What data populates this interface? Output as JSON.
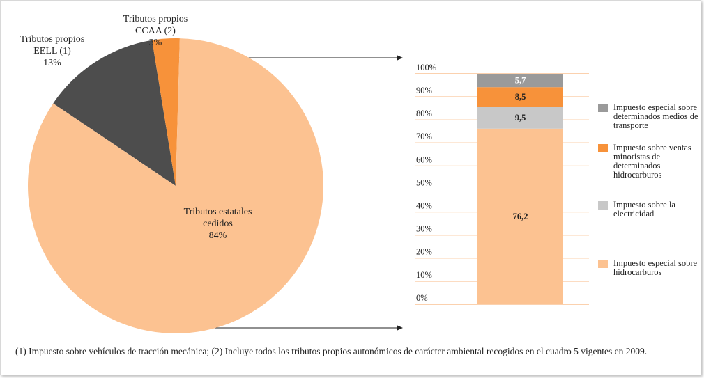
{
  "chart_data": [
    {
      "type": "pie",
      "categories": [
        "Tributos propios EELL (1)",
        "Tributos propios CCAA (2)",
        "Tributos estatales cedidos"
      ],
      "values": [
        13,
        3,
        84
      ],
      "value_labels": [
        "13%",
        "3%",
        "84%"
      ],
      "colors": [
        "#4d4d4d",
        "#f7923a",
        "#fcc291"
      ]
    },
    {
      "type": "stacked-bar",
      "categories": [
        null
      ],
      "series": [
        {
          "name": "Impuesto especial sobre hidrocarburos",
          "color": "#fcc291",
          "values": [
            76.2
          ],
          "value_labels": [
            "76,2"
          ]
        },
        {
          "name": "Impuesto sobre la electricidad",
          "color": "#c8c8c8",
          "values": [
            9.5
          ],
          "value_labels": [
            "9,5"
          ]
        },
        {
          "name": "Impuesto sobre ventas minoristas de determinados hidrocarburos",
          "color": "#f7923a",
          "values": [
            8.5
          ],
          "value_labels": [
            "8,5"
          ]
        },
        {
          "name": "Impuesto especial sobre determinados medios de transporte",
          "color": "#9a9a9a",
          "values": [
            5.7
          ],
          "value_labels": [
            "5,7"
          ]
        }
      ],
      "ylim": [
        0,
        100
      ],
      "yticks": [
        {
          "value": 0,
          "label": "0%"
        },
        {
          "value": 10,
          "label": "10%"
        },
        {
          "value": 20,
          "label": "20%"
        },
        {
          "value": 30,
          "label": "30%"
        },
        {
          "value": 40,
          "label": "40%"
        },
        {
          "value": 50,
          "label": "50%"
        },
        {
          "value": 60,
          "label": "60%"
        },
        {
          "value": 70,
          "label": "70%"
        },
        {
          "value": 80,
          "label": "80%"
        },
        {
          "value": 90,
          "label": "90%"
        },
        {
          "value": 100,
          "label": "100%"
        }
      ],
      "grid": true
    }
  ],
  "footnote": "(1) Impuesto sobre vehículos de tracción mecánica; (2) Incluye todos los tributos propios autonómicos de carácter ambiental recogidos en el cuadro 5 vigentes en 2009."
}
